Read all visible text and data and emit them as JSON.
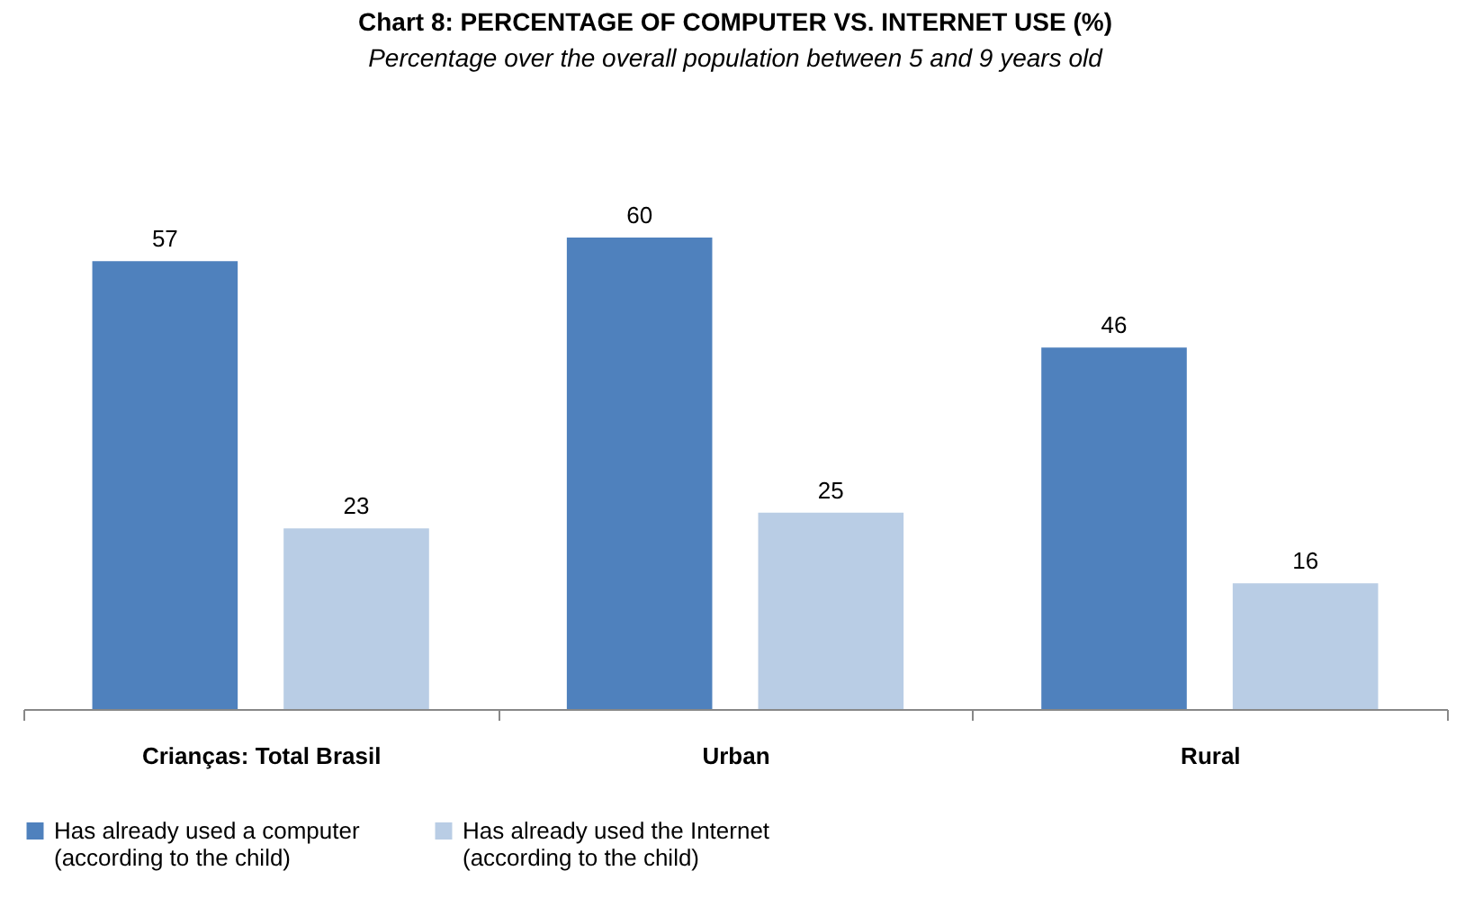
{
  "chart_data": {
    "type": "bar",
    "title": "Chart 8: PERCENTAGE OF COMPUTER VS. INTERNET USE  (%)",
    "subtitle": "Percentage over the overall population between 5 and 9 years old",
    "categories": [
      "Crianças: Total Brasil",
      "Urban",
      "Rural"
    ],
    "series": [
      {
        "name": "Has already used a computer (according to the child)",
        "color": "#4f81bd",
        "values": [
          57,
          60,
          46
        ]
      },
      {
        "name": "Has already used the Internet (according to the child)",
        "color": "#b9cde5",
        "values": [
          23,
          25,
          16
        ]
      }
    ],
    "data_labels": true,
    "legend": "bottom"
  }
}
